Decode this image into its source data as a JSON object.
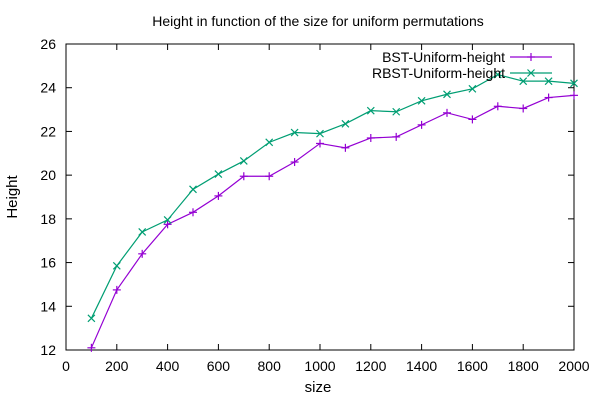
{
  "chart_data": {
    "type": "line",
    "title": "Height in function of the size for uniform permutations",
    "xlabel": "size",
    "ylabel": "Height",
    "xlim": [
      0,
      2000
    ],
    "ylim": [
      12,
      26
    ],
    "xticks": [
      0,
      200,
      400,
      600,
      800,
      1000,
      1200,
      1400,
      1600,
      1800,
      2000
    ],
    "yticks": [
      12,
      14,
      16,
      18,
      20,
      22,
      24,
      26
    ],
    "grid": false,
    "legend_position": "top-right",
    "x": [
      100,
      200,
      300,
      400,
      500,
      600,
      700,
      800,
      900,
      1000,
      1100,
      1200,
      1300,
      1400,
      1500,
      1600,
      1700,
      1800,
      1900,
      2000
    ],
    "series": [
      {
        "name": "BST-Uniform-height",
        "color": "#9400d3",
        "marker": "plus",
        "values": [
          12.1,
          14.75,
          16.4,
          17.75,
          18.3,
          19.05,
          19.95,
          19.95,
          20.6,
          21.45,
          21.25,
          21.7,
          21.75,
          22.3,
          22.85,
          22.55,
          23.15,
          23.05,
          23.55,
          23.65
        ]
      },
      {
        "name": "RBST-Uniform-height",
        "color": "#009e73",
        "marker": "cross",
        "values": [
          13.45,
          15.85,
          17.4,
          17.95,
          19.35,
          20.05,
          20.65,
          21.5,
          21.95,
          21.9,
          22.35,
          22.95,
          22.9,
          23.4,
          23.7,
          23.95,
          24.6,
          24.3,
          24.3,
          24.2
        ]
      }
    ]
  }
}
